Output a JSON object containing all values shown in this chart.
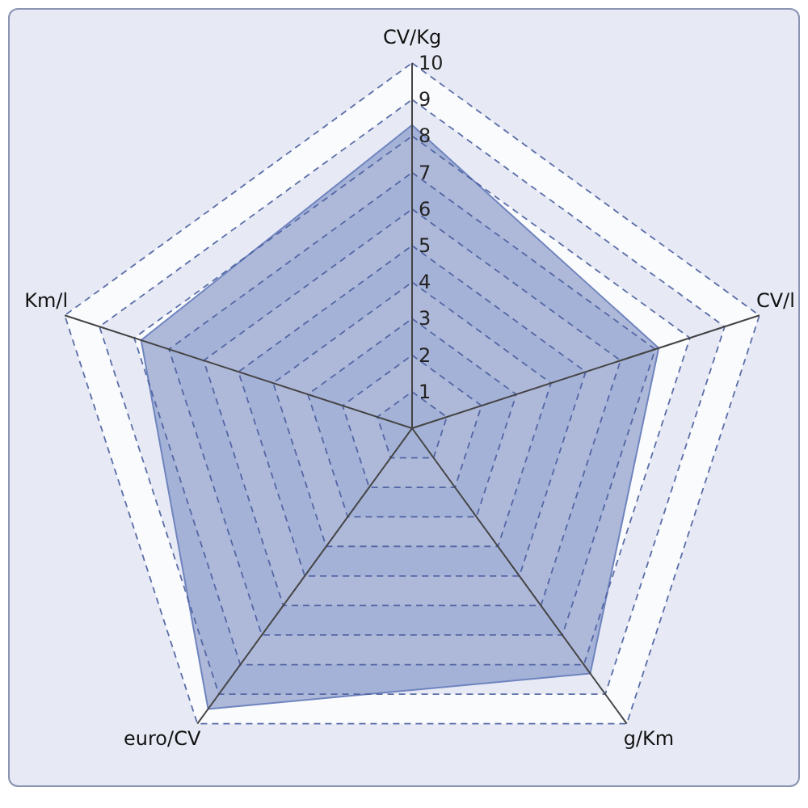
{
  "chart_data": {
    "type": "radar",
    "categories": [
      "CV/Kg",
      "CV/l",
      "g/Km",
      "euro/CV",
      "Km/l"
    ],
    "series": [
      {
        "color": "#6f84be",
        "values": [
          8.3,
          7.1,
          8.3,
          9.5,
          7.8
        ]
      }
    ],
    "ylim": [
      0,
      10
    ],
    "yticks": [
      1,
      2,
      3,
      4,
      5,
      6,
      7,
      8,
      9,
      10
    ],
    "grid": true
  }
}
